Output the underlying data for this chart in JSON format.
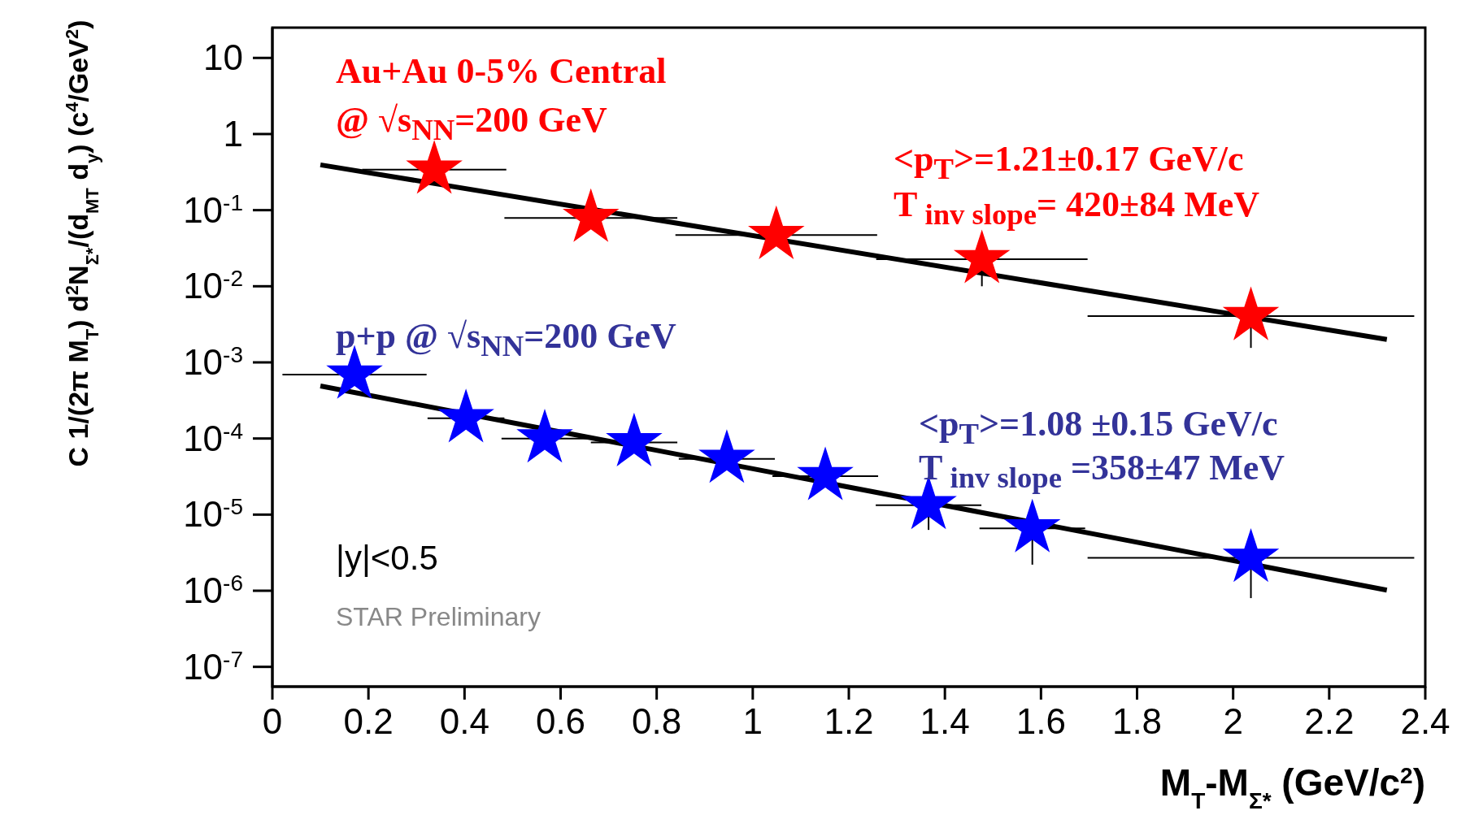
{
  "chart_data": {
    "type": "scatter",
    "log": "y",
    "xlabel": "M$_{T}$-M$_{Σ*}$ (GeV/c$^{2}$)",
    "ylabel": "C 1/(2π M$_{T}$) d$^{2}$N$_{Σ*}$/(d$_{MT}$ d$_{y}$) (c$^{4}$/GeV$^{2}$)",
    "xlim": [
      0,
      2.4
    ],
    "xticks": [
      0,
      0.2,
      0.4,
      0.6,
      0.8,
      1,
      1.2,
      1.4,
      1.6,
      1.8,
      2,
      2.2,
      2.4
    ],
    "ylim": [
      5.5e-08,
      25
    ],
    "yticks": [
      {
        "value": 1e-07,
        "label": "10$^{-7}$"
      },
      {
        "value": 1e-06,
        "label": "10$^{-6}$"
      },
      {
        "value": 1e-05,
        "label": "10$^{-5}$"
      },
      {
        "value": 0.0001,
        "label": "10$^{-4}$"
      },
      {
        "value": 0.001,
        "label": "10$^{-3}$"
      },
      {
        "value": 0.01,
        "label": "10$^{-2}$"
      },
      {
        "value": 0.1,
        "label": "10$^{-1}$"
      },
      {
        "value": 1,
        "label": "1"
      },
      {
        "value": 10,
        "label": "10"
      }
    ],
    "series": [
      {
        "marker": "star",
        "color": "#ff0000",
        "x": [
          0.337,
          0.663,
          1.049,
          1.477,
          2.037
        ],
        "values": [
          0.34,
          0.079,
          0.047,
          0.0227,
          0.00405
        ],
        "xerrors": [
          0.15,
          0.18,
          0.21,
          0.22,
          0.34
        ],
        "errors": [
          null,
          null,
          null,
          0.0127,
          0.0025
        ]
      },
      {
        "marker": "star",
        "color": "#0000ff",
        "x": [
          0.171,
          0.403,
          0.567,
          0.753,
          0.946,
          1.151,
          1.366,
          1.582,
          2.037
        ],
        "values": [
          0.00069,
          0.000184,
          0.0001,
          8.9e-05,
          5.4e-05,
          3.2e-05,
          1.33e-05,
          6.6e-06,
          2.7e-06
        ],
        "xerrors": [
          0.15,
          0.08,
          0.09,
          0.09,
          0.1,
          0.11,
          0.11,
          0.11,
          0.34
        ],
        "errors": [
          null,
          null,
          null,
          null,
          null,
          null,
          7e-06,
          4.4e-06,
          1.9e-06
        ]
      },
      {
        "type": "line",
        "marker": "none",
        "color": "#000000",
        "x": [
          0.1,
          2.32
        ],
        "values": [
          0.394,
          0.002
        ]
      },
      {
        "type": "line",
        "marker": "none",
        "color": "#000000",
        "x": [
          0.1,
          2.32
        ],
        "values": [
          0.00049,
          1.02e-06
        ]
      }
    ],
    "annotations": [
      "Au+Au 0-5% Central",
      "@ √s$_{NN}$=200 GeV",
      "<p$_{T}$>=1.21±0.17 GeV/c",
      "T$_{ inv slope}$= 420±84 MeV",
      "p+p @ √s$_{NN}$=200 GeV",
      "<p$_{T}$>=1.08 ±0.15 GeV/c",
      "T$_{ inv slope}$ =358±47 MeV",
      "|y|<0.5",
      "STAR Preliminary"
    ]
  }
}
